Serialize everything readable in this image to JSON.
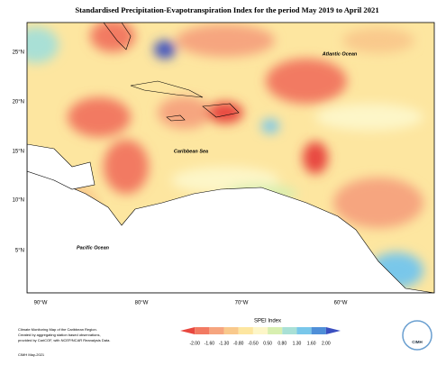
{
  "header": {
    "title": "Standardised Precipitation-Evapotranspiration Index for the period May 2019 to April 2021"
  },
  "map": {
    "lat_labels": [
      "25°N",
      "20°N",
      "15°N",
      "10°N",
      "5°N"
    ],
    "lon_labels": [
      "90°W",
      "80°W",
      "70°W",
      "60°W"
    ],
    "place_labels": [
      "Atlantic Ocean",
      "Caribbean Sea",
      "Pacific Ocean"
    ]
  },
  "legend": {
    "title": "SPEI Index",
    "labels": [
      "-2.00",
      "-1.60",
      "-1.30",
      "-0.80",
      "-0.50",
      "0.50",
      "0.80",
      "1.30",
      "1.60",
      "2.00"
    ],
    "colors": [
      "#e8473f",
      "#f27a62",
      "#f6a57f",
      "#f9c98c",
      "#fde6a0",
      "#fdf6c8",
      "#d8efb0",
      "#a9e0d6",
      "#79c7ea",
      "#4f8fd8",
      "#3b4fc0"
    ]
  },
  "footer": {
    "note": [
      "Climate Monitoring Map of the Caribbean Region.",
      "Created by aggregating station based observations,",
      "provided by CariCOF, with NCEP/NCAR Reanalysis Data."
    ],
    "credit": "CIMH May-2021",
    "logo": "CIMH"
  }
}
